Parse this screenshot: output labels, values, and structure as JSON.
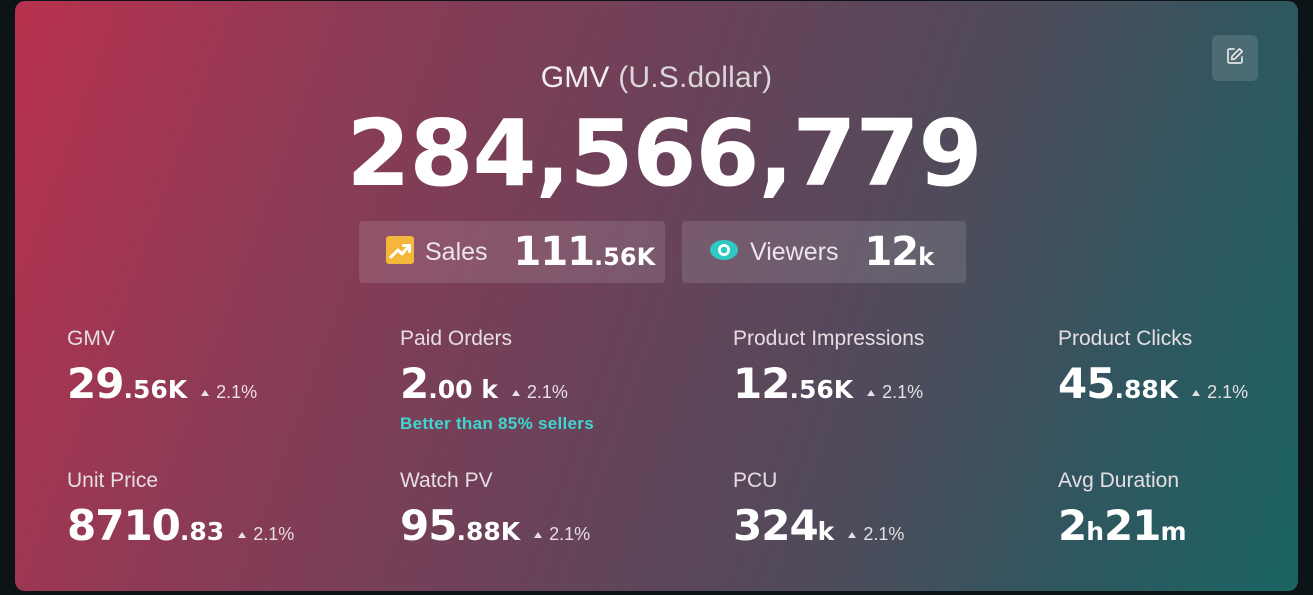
{
  "header": {
    "title_main": "GMV",
    "title_unit": "(U.S.dollar)",
    "value": "284,566,779",
    "edit_icon": "edit-icon"
  },
  "pills": {
    "sales": {
      "icon": "trend-up-icon",
      "label": "Sales",
      "value_int": "111",
      "value_suffix": ".56K"
    },
    "viewers": {
      "icon": "eye-icon",
      "label": "Viewers",
      "value_int": "12",
      "value_suffix": "k"
    }
  },
  "metrics": [
    {
      "label": "GMV",
      "int": "29",
      "dec": ".56K",
      "change": "2.1%"
    },
    {
      "label": "Paid Orders",
      "int": "2",
      "dec": ".00 k",
      "change": "2.1%",
      "note": "Better than 85% sellers"
    },
    {
      "label": "Product Impressions",
      "int": "12",
      "dec": ".56K",
      "change": "2.1%"
    },
    {
      "label": "Product Clicks",
      "int": "45",
      "dec": ".88K",
      "change": "2.1%"
    },
    {
      "label": "Unit Price",
      "int": "8710",
      "dec": ".83",
      "change": "2.1%"
    },
    {
      "label": "Watch PV",
      "int": "95",
      "dec": ".88K",
      "change": "2.1%"
    },
    {
      "label": "PCU",
      "int": "324",
      "dec": "k",
      "change": "2.1%"
    },
    {
      "label": "Avg Duration",
      "int_h": "2",
      "unit_h": "h",
      "int_m": "21",
      "unit_m": "m"
    }
  ],
  "colors": {
    "gradient_start": "#b8314e",
    "gradient_end": "#1a6462",
    "highlight": "#3fd6d0",
    "sales_icon": "#f5b73a",
    "viewers_icon": "#2ec9c4"
  }
}
